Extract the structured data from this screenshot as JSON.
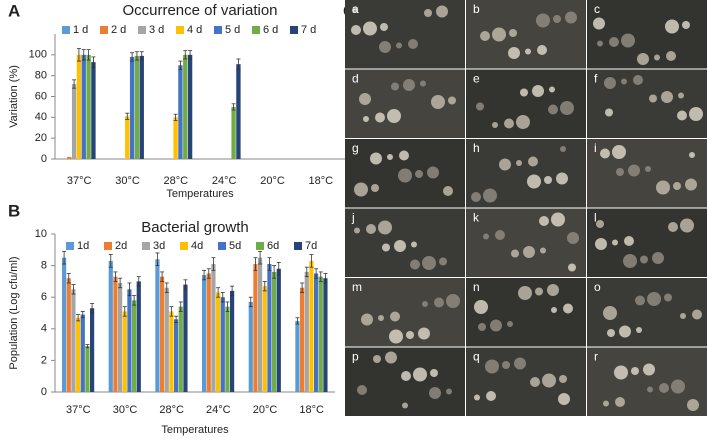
{
  "panel_labels": [
    "A",
    "B",
    "C"
  ],
  "photo_labels": [
    "a",
    "b",
    "c",
    "d",
    "e",
    "f",
    "g",
    "h",
    "i",
    "j",
    "k",
    "l",
    "m",
    "n",
    "o",
    "p",
    "q",
    "r"
  ],
  "chart_data": [
    {
      "type": "bar",
      "title": "Occurrence of variation",
      "y_label": "Variation (%)",
      "x_label": "Temperatures",
      "categories": [
        "37°C",
        "30°C",
        "28°C",
        "24°C",
        "20°C",
        "18°C"
      ],
      "ylim": [
        0,
        120
      ],
      "yticks": [
        0,
        20,
        40,
        60,
        80,
        100
      ],
      "series": [
        {
          "name": "1 d",
          "color": "#5b9bd5",
          "values": [
            0,
            0,
            0,
            0,
            0,
            0
          ],
          "errors": [
            0,
            0,
            0,
            0,
            0,
            0
          ]
        },
        {
          "name": "2 d",
          "color": "#ed7d31",
          "values": [
            2,
            0,
            0,
            0,
            0,
            0
          ],
          "errors": [
            0,
            0,
            0,
            0,
            0,
            0
          ]
        },
        {
          "name": "3 d",
          "color": "#a5a5a5",
          "values": [
            72,
            0,
            0,
            0,
            0,
            0
          ],
          "errors": [
            4,
            0,
            0,
            0,
            0,
            0
          ]
        },
        {
          "name": "4 d",
          "color": "#ffc000",
          "values": [
            100,
            41,
            40,
            0,
            0,
            0
          ],
          "errors": [
            6,
            3,
            3,
            0,
            0,
            0
          ]
        },
        {
          "name": "5 d",
          "color": "#4472c4",
          "values": [
            100,
            98,
            90,
            0,
            0,
            0
          ],
          "errors": [
            5,
            4,
            4,
            0,
            0,
            0
          ]
        },
        {
          "name": "6 d",
          "color": "#70ad47",
          "values": [
            100,
            99,
            100,
            50,
            0,
            0
          ],
          "errors": [
            5,
            4,
            4,
            3,
            0,
            0
          ]
        },
        {
          "name": "7 d",
          "color": "#264478",
          "values": [
            93,
            99,
            100,
            91,
            0,
            0
          ],
          "errors": [
            5,
            4,
            4,
            5,
            0,
            0
          ]
        }
      ]
    },
    {
      "type": "bar",
      "title": "Bacterial growth",
      "y_label": "Population (Log cfu/ml)",
      "x_label": "Temperatures",
      "categories": [
        "37°C",
        "30°C",
        "28°C",
        "24°C",
        "20°C",
        "18°C"
      ],
      "ylim": [
        0,
        10
      ],
      "yticks": [
        0,
        2,
        4,
        6,
        8,
        10
      ],
      "series": [
        {
          "name": "1d",
          "color": "#5b9bd5",
          "values": [
            8.5,
            8.3,
            8.4,
            7.4,
            5.7,
            4.5
          ],
          "errors": [
            0.4,
            0.4,
            0.4,
            0.3,
            0.3,
            0.2
          ]
        },
        {
          "name": "2d",
          "color": "#ed7d31",
          "values": [
            7.2,
            7.3,
            7.3,
            7.5,
            8.1,
            6.6
          ],
          "errors": [
            0.3,
            0.3,
            0.3,
            0.3,
            0.4,
            0.3
          ]
        },
        {
          "name": "3d",
          "color": "#a5a5a5",
          "values": [
            6.5,
            6.9,
            6.6,
            8.1,
            8.5,
            7.6
          ],
          "errors": [
            0.3,
            0.3,
            0.3,
            0.4,
            0.4,
            0.3
          ]
        },
        {
          "name": "4d",
          "color": "#ffc000",
          "values": [
            4.7,
            5.1,
            5.1,
            6.3,
            6.7,
            8.3
          ],
          "errors": [
            0.2,
            0.3,
            0.3,
            0.3,
            0.3,
            0.4
          ]
        },
        {
          "name": "5d",
          "color": "#4472c4",
          "values": [
            4.9,
            6.5,
            4.6,
            6.0,
            8.1,
            7.5
          ],
          "errors": [
            0.2,
            0.4,
            0.2,
            0.3,
            0.4,
            0.3
          ]
        },
        {
          "name": "6d",
          "color": "#70ad47",
          "values": [
            2.9,
            5.8,
            5.4,
            5.4,
            7.6,
            7.3
          ],
          "errors": [
            0.1,
            0.3,
            0.3,
            0.3,
            0.4,
            0.3
          ]
        },
        {
          "name": "7d",
          "color": "#264478",
          "values": [
            5.3,
            7.0,
            6.8,
            6.4,
            7.8,
            7.2
          ],
          "errors": [
            0.3,
            0.3,
            0.3,
            0.3,
            0.4,
            0.3
          ]
        }
      ]
    }
  ]
}
